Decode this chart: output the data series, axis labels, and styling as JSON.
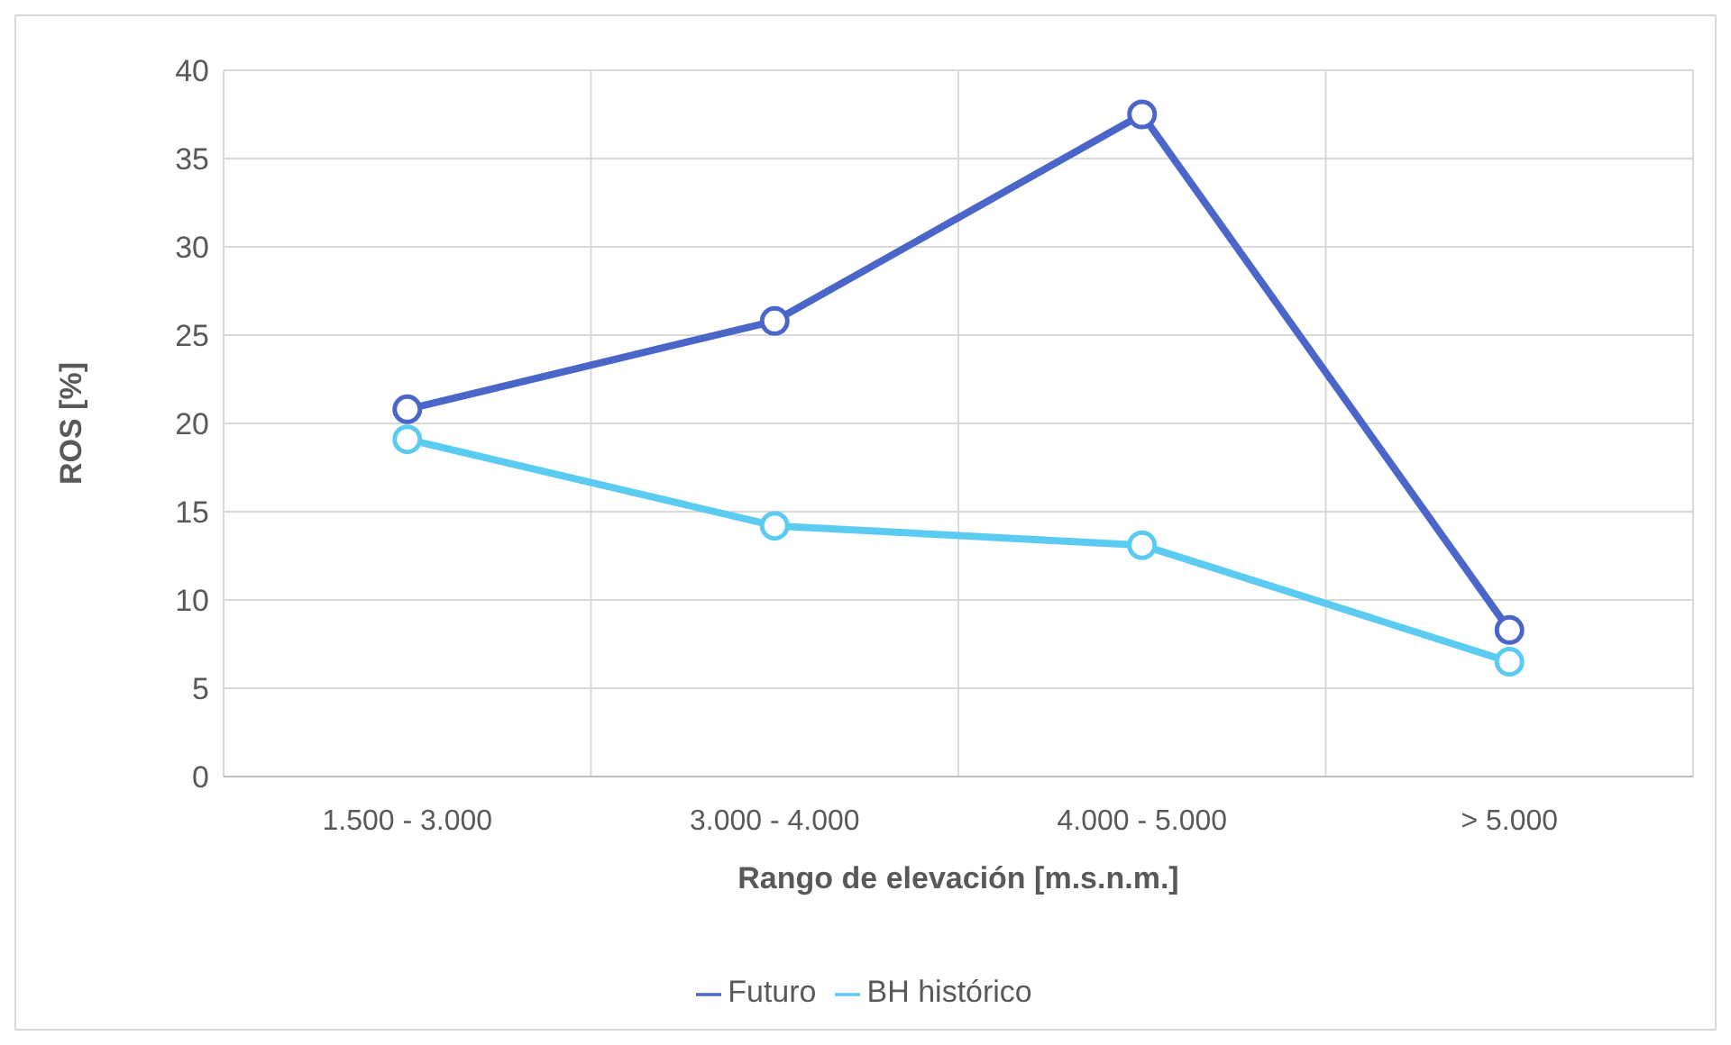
{
  "chart_data": {
    "type": "line",
    "xlabel": "Rango de elevación [m.s.n.m.]",
    "ylabel": "ROS [%]",
    "categories": [
      "1.500 - 3.000",
      "3.000 - 4.000",
      "4.000 - 5.000",
      "> 5.000"
    ],
    "series": [
      {
        "name": "Futuro",
        "color": "#4a66c8",
        "values": [
          20.8,
          25.8,
          37.5,
          8.3
        ]
      },
      {
        "name": "BH histórico",
        "color": "#5ccbf2",
        "values": [
          19.1,
          14.2,
          13.1,
          6.5
        ]
      }
    ],
    "ylim": [
      0,
      40
    ],
    "yticks": [
      0,
      5,
      10,
      15,
      20,
      25,
      30,
      35,
      40
    ],
    "grid": true,
    "legend": "bottom",
    "marker": "circle",
    "line_style": "solid"
  }
}
